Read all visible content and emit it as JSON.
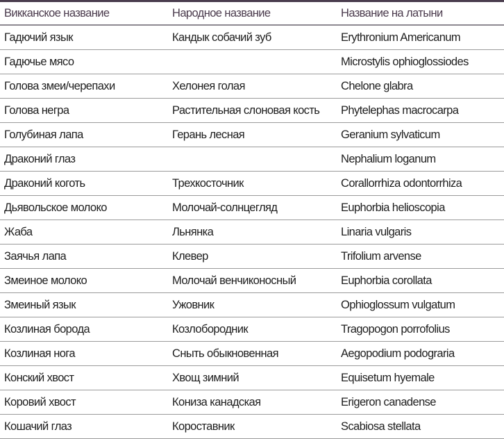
{
  "table": {
    "headers": [
      "Викканское название",
      "Народное название",
      "Название на латыни"
    ],
    "rows": [
      [
        "Гадючий язык",
        "Кандык собачий зуб",
        "Erythronium Americanum"
      ],
      [
        "Гадючье мясо",
        "",
        "Microstylis ophioglossiodes"
      ],
      [
        "Голова змеи/черепахи",
        "Хелонея голая",
        "Chelone glabra"
      ],
      [
        "Голова негра",
        "Растительная слоновая кость",
        "Phytelephas macrocarpa"
      ],
      [
        "Голубиная лапа",
        "Герань лесная",
        "Geranium sylvaticum"
      ],
      [
        "Драконий глаз",
        "",
        "Nephalium loganum"
      ],
      [
        "Драконий коготь",
        "Трехкосточник",
        "Corallorrhiza odontorrhiza"
      ],
      [
        "Дьявольское молоко",
        "Молочай-солнцегляд",
        "Euphorbia helioscopia"
      ],
      [
        "Жаба",
        "Льнянка",
        "Linaria vulgaris"
      ],
      [
        "Заячья лапа",
        "Клевер",
        "Trifolium arvense"
      ],
      [
        "Змеиное молоко",
        "Молочай венчиконосный",
        "Euphorbia corollata"
      ],
      [
        "Змеиный язык",
        "Ужовник",
        "Ophioglossum vulgatum"
      ],
      [
        "Козлиная борода",
        "Козлобородник",
        "Tragopogon porrofolius"
      ],
      [
        "Козлиная нога",
        "Сныть обыкновенная",
        "Aegopodium podograria"
      ],
      [
        "Конский хвост",
        "Хвощ зимний",
        "Equisetum hyemale"
      ],
      [
        "Коровий хвост",
        "Кониза канадская",
        "Erigeron canadense"
      ],
      [
        "Кошачий глаз",
        "Короставник",
        "Scabiosa stellata"
      ]
    ]
  }
}
